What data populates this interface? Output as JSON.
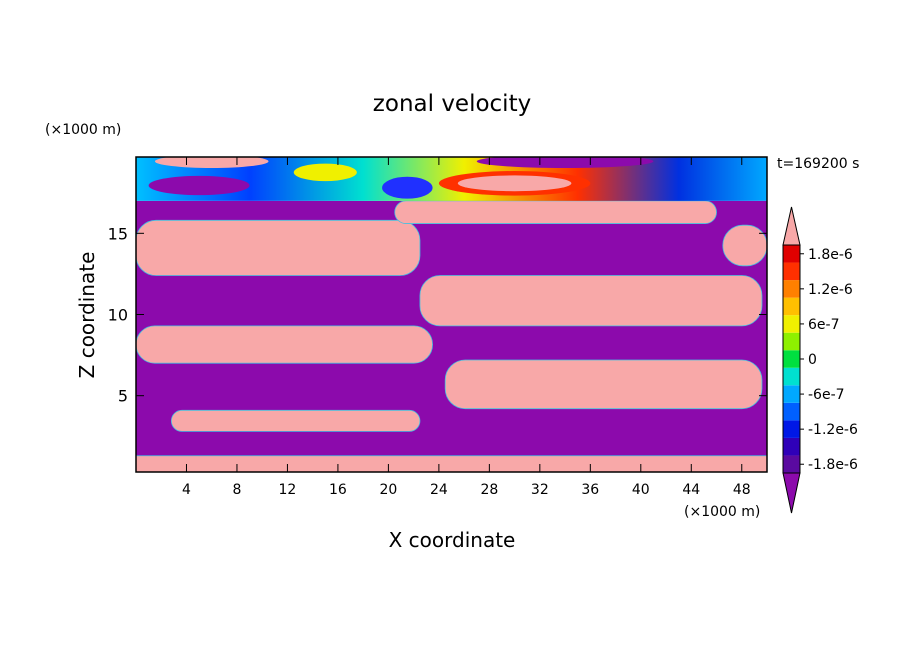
{
  "chart_data": {
    "type": "heatmap",
    "title": "zonal velocity",
    "xlabel": "X coordinate",
    "ylabel": "Z coordinate",
    "x_unit": "(×1000 m)",
    "y_unit": "(×1000 m)",
    "time_label": "t=169200 s",
    "xlim": [
      0,
      50
    ],
    "ylim": [
      0.3,
      19.7
    ],
    "x_ticks": [
      4,
      8,
      12,
      16,
      20,
      24,
      28,
      32,
      36,
      40,
      44,
      48
    ],
    "y_ticks": [
      5,
      10,
      15
    ],
    "colorbar": {
      "levels": [
        -1.8e-06,
        -1.5e-06,
        -1.2e-06,
        -9e-07,
        -6e-07,
        -3e-07,
        0,
        3e-07,
        6e-07,
        9e-07,
        1.2e-06,
        1.5e-06,
        1.8e-06
      ],
      "tick_labels": [
        "1.8e-6",
        "1.2e-6",
        "6e-7",
        "0",
        "-6e-7",
        "-1.2e-6",
        "-1.8e-6"
      ],
      "tick_values": [
        1.8e-06,
        1.2e-06,
        6e-07,
        0,
        -6e-07,
        -1.2e-06,
        -1.8e-06
      ],
      "colors": [
        "#5a0aa0",
        "#2f00b8",
        "#0018e6",
        "#0060ff",
        "#00a8ff",
        "#00e0d0",
        "#00e040",
        "#8ef000",
        "#f0f000",
        "#ffc000",
        "#ff8000",
        "#ff3000",
        "#e00000"
      ],
      "under_color": "#8c0aac",
      "over_color": "#f8a8a8"
    },
    "regions": [
      {
        "sign": "negative",
        "x": [
          0,
          50
        ],
        "z": [
          0.3,
          17
        ]
      },
      {
        "sign": "positive",
        "x": [
          0,
          22.5
        ],
        "z": [
          12.4,
          15.8
        ]
      },
      {
        "sign": "positive",
        "x": [
          22.5,
          49.6
        ],
        "z": [
          9.3,
          12.4
        ]
      },
      {
        "sign": "positive",
        "x": [
          0,
          23.5
        ],
        "z": [
          7,
          9.3
        ]
      },
      {
        "sign": "positive",
        "x": [
          24.5,
          49.6
        ],
        "z": [
          4.2,
          7.2
        ]
      },
      {
        "sign": "positive",
        "x": [
          2.8,
          22.5
        ],
        "z": [
          2.8,
          4.1
        ]
      },
      {
        "sign": "positive",
        "x": [
          0,
          50
        ],
        "z": [
          0.3,
          1.3
        ]
      },
      {
        "sign": "positive",
        "x": [
          46.5,
          50
        ],
        "z": [
          13,
          15.5
        ]
      },
      {
        "sign": "positive",
        "x": [
          20.5,
          46
        ],
        "z": [
          15.6,
          17
        ]
      },
      {
        "sign": "mixed",
        "x": [
          0,
          50
        ],
        "z": [
          17,
          19.7
        ]
      }
    ]
  }
}
